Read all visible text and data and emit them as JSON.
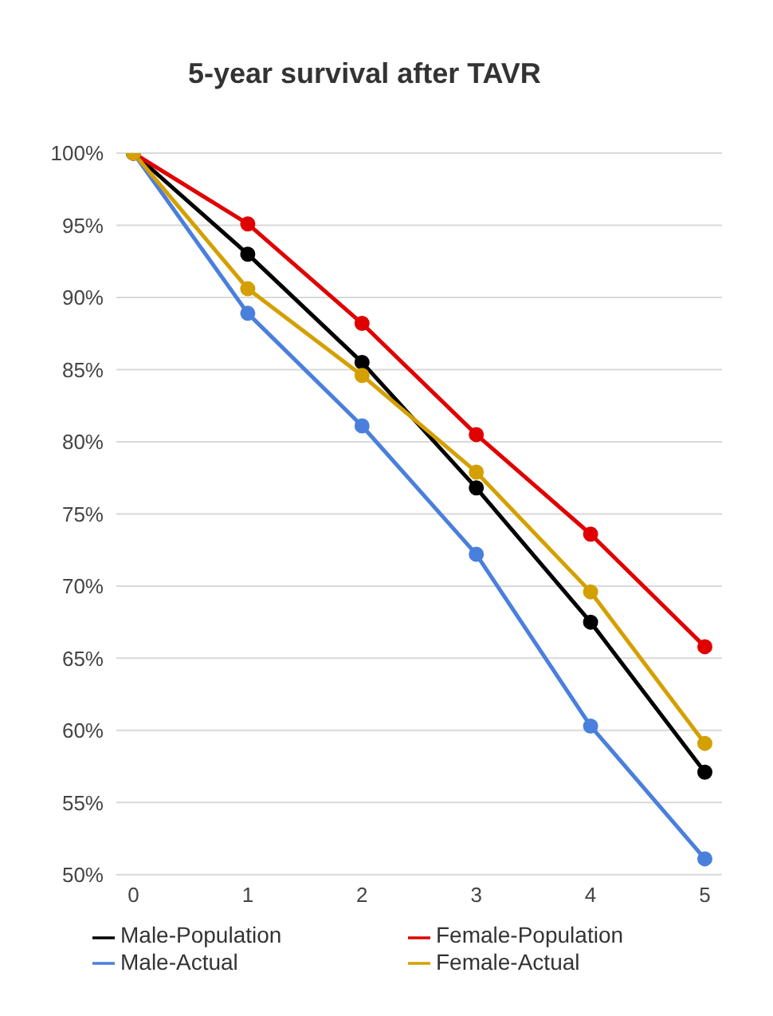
{
  "chart_data": {
    "type": "line",
    "title": "5-year survival after TAVR",
    "x": [
      0,
      1,
      2,
      3,
      4,
      5
    ],
    "xlim": [
      -0.15,
      5.15
    ],
    "xticks": [
      0,
      1,
      2,
      3,
      4,
      5
    ],
    "ylim": [
      50,
      100
    ],
    "yticks": [
      {
        "value": 50,
        "label": "50%"
      },
      {
        "value": 55,
        "label": "55%"
      },
      {
        "value": 60,
        "label": "60%"
      },
      {
        "value": 65,
        "label": "65%"
      },
      {
        "value": 70,
        "label": "70%"
      },
      {
        "value": 75,
        "label": "75%"
      },
      {
        "value": 80,
        "label": "80%"
      },
      {
        "value": 85,
        "label": "85%"
      },
      {
        "value": 90,
        "label": "90%"
      },
      {
        "value": 95,
        "label": "95%"
      },
      {
        "value": 100,
        "label": "100%"
      }
    ],
    "grid": "y",
    "legend": "bottom",
    "marker": "circle",
    "line_style": "solid",
    "series": [
      {
        "name": "Male-Population",
        "color": "#000000",
        "values": [
          100,
          93.0,
          85.5,
          76.8,
          67.5,
          57.1
        ]
      },
      {
        "name": "Female-Population",
        "color": "#e00000",
        "values": [
          100,
          95.1,
          88.2,
          80.5,
          73.6,
          65.8
        ]
      },
      {
        "name": "Male-Actual",
        "color": "#4a7fdc",
        "values": [
          100,
          88.9,
          81.1,
          72.2,
          60.3,
          51.1
        ]
      },
      {
        "name": "Female-Actual",
        "color": "#d4a000",
        "values": [
          100,
          90.6,
          84.6,
          77.9,
          69.6,
          59.1
        ]
      }
    ]
  }
}
